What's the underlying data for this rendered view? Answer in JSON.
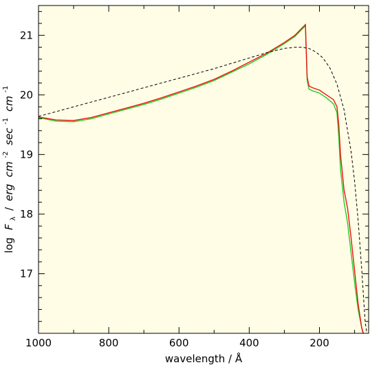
{
  "chart_data": {
    "type": "line",
    "title": "",
    "xlabel": "wavelength / Å",
    "ylabel": "log F_λ / erg cm^-2 sec^-1 cm^-1",
    "ylabel_parts": {
      "log": "log",
      "F": "F",
      "lambda": "λ",
      "slash": "/",
      "erg": "erg",
      "cm": "cm",
      "cm_exp": "-2",
      "sec": "sec",
      "sec_exp": "-1",
      "cm2": "cm",
      "cm2_exp": "-1"
    },
    "x_reversed": true,
    "xlim": [
      1000,
      60
    ],
    "ylim": [
      16.0,
      21.5
    ],
    "x_ticks": [
      1000,
      800,
      600,
      400,
      200
    ],
    "x_tick_labels": [
      "1000",
      "800",
      "600",
      "400",
      "200"
    ],
    "y_ticks": [
      17,
      18,
      19,
      20,
      21
    ],
    "y_tick_labels": [
      "17",
      "18",
      "19",
      "20",
      "21"
    ],
    "background_color": "#fffde6",
    "grid": false,
    "series": [
      {
        "style": "dashed",
        "color": "#000000",
        "x": [
          1000,
          950,
          900,
          850,
          800,
          750,
          700,
          650,
          600,
          550,
          500,
          450,
          400,
          350,
          300,
          270,
          250,
          230,
          210,
          190,
          170,
          150,
          130,
          110,
          100,
          90,
          80,
          70,
          65
        ],
        "y": [
          19.64,
          19.72,
          19.8,
          19.88,
          19.96,
          20.04,
          20.12,
          20.2,
          20.28,
          20.36,
          20.44,
          20.53,
          20.62,
          20.71,
          20.78,
          20.8,
          20.8,
          20.78,
          20.72,
          20.62,
          20.45,
          20.18,
          19.75,
          19.05,
          18.55,
          17.9,
          17.1,
          16.2,
          16.0
        ]
      },
      {
        "style": "solid",
        "color": "#ee1111",
        "x": [
          1000,
          950,
          900,
          850,
          800,
          750,
          700,
          650,
          600,
          550,
          500,
          450,
          400,
          350,
          300,
          270,
          250,
          240,
          235,
          230,
          220,
          200,
          180,
          160,
          150,
          145,
          140,
          130,
          120,
          110,
          100,
          90,
          80,
          75
        ],
        "y": [
          19.63,
          19.58,
          19.57,
          19.62,
          19.7,
          19.78,
          19.86,
          19.95,
          20.05,
          20.15,
          20.26,
          20.4,
          20.55,
          20.7,
          20.88,
          21.0,
          21.12,
          21.18,
          20.3,
          20.15,
          20.12,
          20.08,
          20.0,
          19.92,
          19.8,
          19.5,
          19.0,
          18.4,
          18.1,
          17.6,
          17.05,
          16.5,
          16.1,
          16.0
        ]
      },
      {
        "style": "solid",
        "color": "#22cc22",
        "x": [
          1000,
          950,
          900,
          850,
          800,
          750,
          700,
          650,
          600,
          550,
          500,
          450,
          400,
          350,
          300,
          270,
          250,
          240,
          235,
          230,
          220,
          200,
          180,
          160,
          150,
          145,
          140,
          130,
          120,
          110,
          100,
          90,
          80,
          76
        ],
        "y": [
          19.62,
          19.56,
          19.55,
          19.6,
          19.68,
          19.76,
          19.84,
          19.93,
          20.03,
          20.13,
          20.24,
          20.38,
          20.52,
          20.68,
          20.86,
          20.98,
          21.1,
          21.16,
          20.25,
          20.1,
          20.07,
          20.03,
          19.95,
          19.85,
          19.7,
          19.3,
          18.75,
          18.2,
          17.85,
          17.35,
          16.85,
          16.4,
          16.1,
          16.0
        ]
      }
    ]
  }
}
